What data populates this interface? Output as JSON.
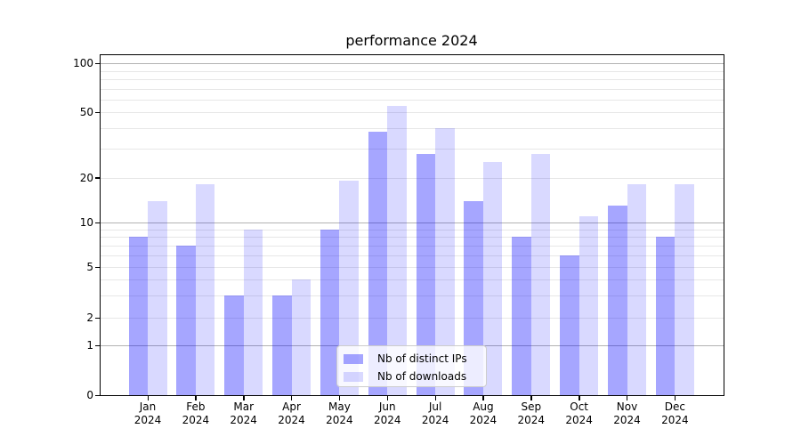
{
  "title": "performance 2024",
  "legend": {
    "items": [
      {
        "label": "Nb of distinct IPs",
        "color": "rgba(0,0,255,0.35)",
        "solid_hex": "#a6a6ff"
      },
      {
        "label": "Nb of downloads",
        "color": "rgba(0,0,255,0.15)",
        "solid_hex": "#d9d9ff"
      }
    ],
    "position": "lower center"
  },
  "y_axis": {
    "tick_labels": [
      "100",
      "50",
      "20",
      "10",
      "5",
      "2",
      "1",
      "0"
    ],
    "tick_values": [
      100,
      50,
      20,
      10,
      5,
      2,
      1,
      0
    ],
    "major_grid_values": [
      1,
      10,
      100
    ],
    "minor_grid_values": [
      2,
      3,
      4,
      5,
      6,
      7,
      8,
      9,
      20,
      30,
      40,
      50,
      60,
      70,
      80,
      90
    ]
  },
  "x_axis": {
    "tick_labels": [
      "Jan 2024",
      "Feb 2024",
      "Mar 2024",
      "Apr 2024",
      "May 2024",
      "Jun 2024",
      "Jul 2024",
      "Aug 2024",
      "Sep 2024",
      "Oct 2024",
      "Nov 2024",
      "Dec 2024"
    ]
  },
  "chart_data": {
    "type": "bar",
    "title": "performance 2024",
    "categories": [
      "Jan 2024",
      "Feb 2024",
      "Mar 2024",
      "Apr 2024",
      "May 2024",
      "Jun 2024",
      "Jul 2024",
      "Aug 2024",
      "Sep 2024",
      "Oct 2024",
      "Nov 2024",
      "Dec 2024"
    ],
    "series": [
      {
        "name": "Nb of distinct IPs",
        "values": [
          8,
          7,
          3,
          3,
          9,
          38,
          28,
          14,
          8,
          6,
          13,
          8
        ]
      },
      {
        "name": "Nb of downloads",
        "values": [
          14,
          18,
          9,
          4,
          19,
          55,
          40,
          25,
          28,
          11,
          18,
          18
        ]
      }
    ],
    "xlabel": "",
    "ylabel": "",
    "yscale": "symlog-like: linear 0-1, logarithmic 1-100",
    "yticks": [
      0,
      1,
      2,
      5,
      10,
      20,
      50,
      100
    ],
    "ylim": [
      0,
      115
    ],
    "grid": "horizontal major+minor",
    "legend_position": "lower center"
  }
}
